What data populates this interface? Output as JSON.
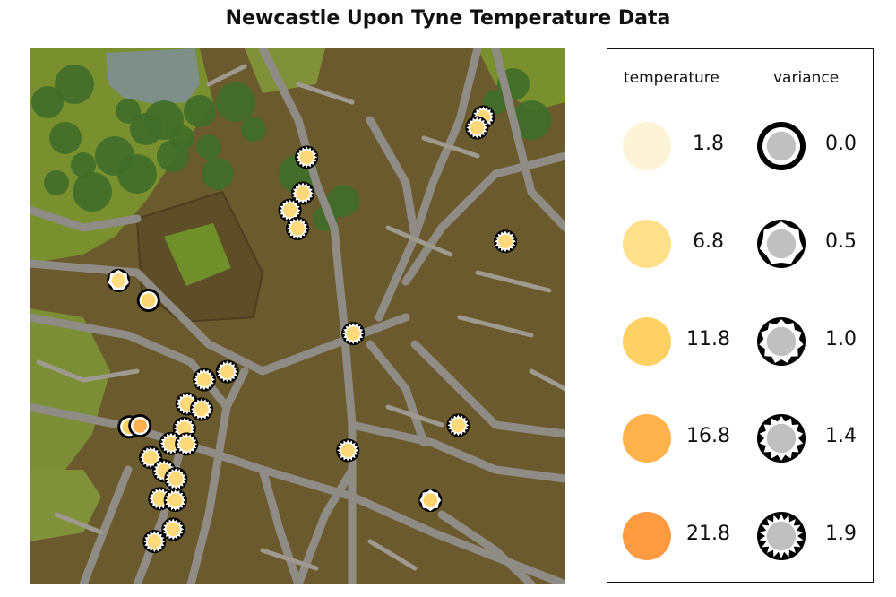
{
  "title": "Newcastle Upon Tyne Temperature Data",
  "legend": {
    "temperature_header": "temperature",
    "variance_header": "variance",
    "temperature_items": [
      {
        "label": "1.8",
        "color": "#fdf3d8"
      },
      {
        "label": "6.8",
        "color": "#fee08b"
      },
      {
        "label": "11.8",
        "color": "#fed165"
      },
      {
        "label": "16.8",
        "color": "#feb24c"
      },
      {
        "label": "21.8",
        "color": "#fe9b40"
      }
    ],
    "variance_items": [
      {
        "label": "0.0",
        "value": 0.0
      },
      {
        "label": "0.5",
        "value": 0.5
      },
      {
        "label": "1.0",
        "value": 1.0
      },
      {
        "label": "1.4",
        "value": 1.4
      },
      {
        "label": "1.9",
        "value": 1.9
      }
    ]
  },
  "colors": {
    "building": "#6b5a2e",
    "road": "#8f8c86",
    "park": "#7a8f2e",
    "tree": "#3f6d2a",
    "water": "#7e8f8a",
    "pitch": "#6e8f2a"
  },
  "map_points": [
    {
      "lon_frac": 0.847,
      "lat_frac": 0.128,
      "temperature": 9.0,
      "variance": 1.6
    },
    {
      "lon_frac": 0.835,
      "lat_frac": 0.148,
      "temperature": 9.0,
      "variance": 1.6
    },
    {
      "lon_frac": 0.517,
      "lat_frac": 0.203,
      "temperature": 9.0,
      "variance": 1.6
    },
    {
      "lon_frac": 0.51,
      "lat_frac": 0.27,
      "temperature": 9.0,
      "variance": 1.6
    },
    {
      "lon_frac": 0.486,
      "lat_frac": 0.302,
      "temperature": 9.0,
      "variance": 1.6
    },
    {
      "lon_frac": 0.5,
      "lat_frac": 0.336,
      "temperature": 9.0,
      "variance": 1.6
    },
    {
      "lon_frac": 0.888,
      "lat_frac": 0.36,
      "temperature": 9.0,
      "variance": 1.6
    },
    {
      "lon_frac": 0.166,
      "lat_frac": 0.433,
      "temperature": 8.0,
      "variance": 0.5
    },
    {
      "lon_frac": 0.222,
      "lat_frac": 0.47,
      "temperature": 10.0,
      "variance": 0.0
    },
    {
      "lon_frac": 0.604,
      "lat_frac": 0.532,
      "temperature": 9.0,
      "variance": 1.6
    },
    {
      "lon_frac": 0.369,
      "lat_frac": 0.603,
      "temperature": 9.0,
      "variance": 1.6
    },
    {
      "lon_frac": 0.326,
      "lat_frac": 0.618,
      "temperature": 9.0,
      "variance": 1.6
    },
    {
      "lon_frac": 0.294,
      "lat_frac": 0.663,
      "temperature": 9.0,
      "variance": 1.6
    },
    {
      "lon_frac": 0.321,
      "lat_frac": 0.673,
      "temperature": 9.0,
      "variance": 1.6
    },
    {
      "lon_frac": 0.289,
      "lat_frac": 0.709,
      "temperature": 9.0,
      "variance": 1.6
    },
    {
      "lon_frac": 0.186,
      "lat_frac": 0.706,
      "temperature": 12.0,
      "variance": 0.0
    },
    {
      "lon_frac": 0.206,
      "lat_frac": 0.704,
      "temperature": 17.0,
      "variance": 0.0
    },
    {
      "lon_frac": 0.264,
      "lat_frac": 0.737,
      "temperature": 9.0,
      "variance": 1.6
    },
    {
      "lon_frac": 0.293,
      "lat_frac": 0.738,
      "temperature": 9.0,
      "variance": 1.6
    },
    {
      "lon_frac": 0.226,
      "lat_frac": 0.763,
      "temperature": 9.0,
      "variance": 1.6
    },
    {
      "lon_frac": 0.251,
      "lat_frac": 0.788,
      "temperature": 9.0,
      "variance": 1.6
    },
    {
      "lon_frac": 0.273,
      "lat_frac": 0.803,
      "temperature": 9.0,
      "variance": 1.6
    },
    {
      "lon_frac": 0.243,
      "lat_frac": 0.84,
      "temperature": 9.0,
      "variance": 1.6
    },
    {
      "lon_frac": 0.272,
      "lat_frac": 0.843,
      "temperature": 9.0,
      "variance": 1.6
    },
    {
      "lon_frac": 0.268,
      "lat_frac": 0.897,
      "temperature": 9.0,
      "variance": 1.6
    },
    {
      "lon_frac": 0.233,
      "lat_frac": 0.92,
      "temperature": 9.0,
      "variance": 1.6
    },
    {
      "lon_frac": 0.8,
      "lat_frac": 0.703,
      "temperature": 9.0,
      "variance": 1.6
    },
    {
      "lon_frac": 0.594,
      "lat_frac": 0.75,
      "temperature": 9.0,
      "variance": 1.6
    },
    {
      "lon_frac": 0.748,
      "lat_frac": 0.843,
      "temperature": 11.0,
      "variance": 0.6
    }
  ]
}
